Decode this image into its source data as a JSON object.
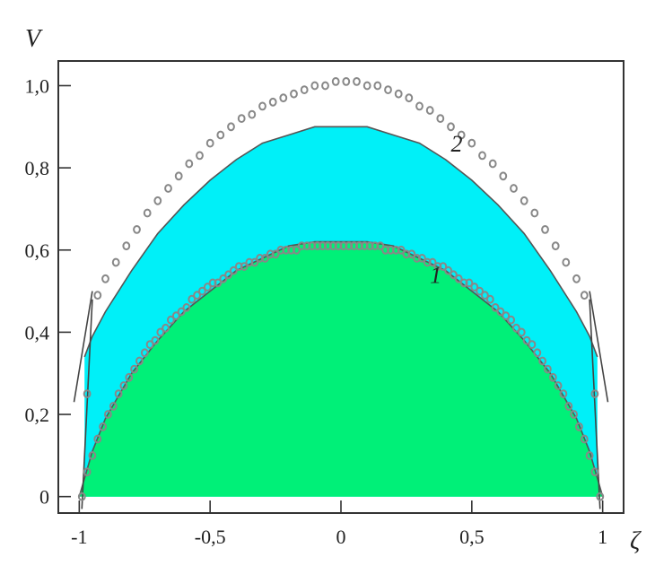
{
  "chart_data": {
    "type": "area",
    "title": "",
    "xlabel": "ζ",
    "ylabel": "V",
    "xlim": [
      -1.08,
      1.08
    ],
    "ylim": [
      -0.04,
      1.06
    ],
    "xticks": [
      -1,
      -0.5,
      0,
      0.5,
      1
    ],
    "xtick_labels": [
      "-1",
      "-0,5",
      "0",
      "0,5",
      "1"
    ],
    "yticks": [
      0,
      0.2,
      0.4,
      0.6,
      0.8,
      1.0
    ],
    "ytick_labels": [
      "0",
      "0,2",
      "0,4",
      "0,6",
      "0,8",
      "1,0"
    ],
    "grid": false,
    "bands": [
      {
        "color": "#00f0f8",
        "x": [
          -0.98,
          -0.95,
          -0.9,
          -0.8,
          -0.7,
          -0.6,
          -0.5,
          -0.4,
          -0.3,
          -0.2,
          -0.1,
          0,
          0.1,
          0.2,
          0.3,
          0.4,
          0.5,
          0.6,
          0.7,
          0.8,
          0.9,
          0.95,
          0.98
        ],
        "y": [
          0.34,
          0.39,
          0.45,
          0.55,
          0.64,
          0.71,
          0.77,
          0.82,
          0.86,
          0.88,
          0.9,
          0.9,
          0.9,
          0.88,
          0.86,
          0.82,
          0.77,
          0.71,
          0.64,
          0.55,
          0.45,
          0.39,
          0.34
        ]
      },
      {
        "color": "#00f078",
        "x": [
          -1,
          -0.95,
          -0.9,
          -0.8,
          -0.7,
          -0.6,
          -0.5,
          -0.4,
          -0.3,
          -0.2,
          -0.1,
          0,
          0.1,
          0.2,
          0.3,
          0.4,
          0.5,
          0.6,
          0.7,
          0.8,
          0.9,
          0.95,
          1
        ],
        "y": [
          0,
          0.11,
          0.19,
          0.3,
          0.38,
          0.45,
          0.5,
          0.55,
          0.58,
          0.61,
          0.62,
          0.62,
          0.62,
          0.61,
          0.58,
          0.55,
          0.5,
          0.45,
          0.38,
          0.3,
          0.19,
          0.11,
          0
        ]
      }
    ],
    "series": [
      {
        "label": "2",
        "marker": "circle",
        "points": [
          [
            -0.97,
            0.25
          ],
          [
            -0.93,
            0.49
          ],
          [
            -0.9,
            0.53
          ],
          [
            -0.86,
            0.57
          ],
          [
            -0.82,
            0.61
          ],
          [
            -0.78,
            0.65
          ],
          [
            -0.74,
            0.69
          ],
          [
            -0.7,
            0.72
          ],
          [
            -0.66,
            0.75
          ],
          [
            -0.62,
            0.78
          ],
          [
            -0.58,
            0.81
          ],
          [
            -0.54,
            0.83
          ],
          [
            -0.5,
            0.86
          ],
          [
            -0.46,
            0.88
          ],
          [
            -0.42,
            0.9
          ],
          [
            -0.38,
            0.92
          ],
          [
            -0.34,
            0.93
          ],
          [
            -0.3,
            0.95
          ],
          [
            -0.26,
            0.96
          ],
          [
            -0.22,
            0.97
          ],
          [
            -0.18,
            0.98
          ],
          [
            -0.14,
            0.99
          ],
          [
            -0.1,
            1.0
          ],
          [
            -0.06,
            1.0
          ],
          [
            -0.02,
            1.01
          ],
          [
            0.02,
            1.01
          ],
          [
            0.06,
            1.01
          ],
          [
            0.1,
            1.0
          ],
          [
            0.14,
            1.0
          ],
          [
            0.18,
            0.99
          ],
          [
            0.22,
            0.98
          ],
          [
            0.26,
            0.97
          ],
          [
            0.3,
            0.95
          ],
          [
            0.34,
            0.94
          ],
          [
            0.38,
            0.92
          ],
          [
            0.42,
            0.9
          ],
          [
            0.46,
            0.88
          ],
          [
            0.5,
            0.86
          ],
          [
            0.54,
            0.83
          ],
          [
            0.58,
            0.81
          ],
          [
            0.62,
            0.78
          ],
          [
            0.66,
            0.75
          ],
          [
            0.7,
            0.72
          ],
          [
            0.74,
            0.69
          ],
          [
            0.78,
            0.65
          ],
          [
            0.82,
            0.61
          ],
          [
            0.86,
            0.57
          ],
          [
            0.9,
            0.53
          ],
          [
            0.93,
            0.49
          ],
          [
            0.97,
            0.25
          ]
        ]
      },
      {
        "label": "1",
        "marker": "circle",
        "points": [
          [
            -0.99,
            0.0
          ],
          [
            -0.97,
            0.06
          ],
          [
            -0.95,
            0.1
          ],
          [
            -0.93,
            0.14
          ],
          [
            -0.91,
            0.17
          ],
          [
            -0.89,
            0.2
          ],
          [
            -0.87,
            0.22
          ],
          [
            -0.85,
            0.25
          ],
          [
            -0.83,
            0.27
          ],
          [
            -0.81,
            0.29
          ],
          [
            -0.79,
            0.31
          ],
          [
            -0.77,
            0.33
          ],
          [
            -0.75,
            0.35
          ],
          [
            -0.73,
            0.37
          ],
          [
            -0.71,
            0.38
          ],
          [
            -0.69,
            0.4
          ],
          [
            -0.67,
            0.41
          ],
          [
            -0.65,
            0.43
          ],
          [
            -0.63,
            0.44
          ],
          [
            -0.61,
            0.45
          ],
          [
            -0.59,
            0.46
          ],
          [
            -0.57,
            0.48
          ],
          [
            -0.55,
            0.49
          ],
          [
            -0.53,
            0.5
          ],
          [
            -0.51,
            0.51
          ],
          [
            -0.49,
            0.52
          ],
          [
            -0.47,
            0.52
          ],
          [
            -0.45,
            0.53
          ],
          [
            -0.43,
            0.54
          ],
          [
            -0.41,
            0.55
          ],
          [
            -0.39,
            0.56
          ],
          [
            -0.37,
            0.56
          ],
          [
            -0.35,
            0.57
          ],
          [
            -0.33,
            0.57
          ],
          [
            -0.31,
            0.58
          ],
          [
            -0.29,
            0.58
          ],
          [
            -0.27,
            0.59
          ],
          [
            -0.25,
            0.59
          ],
          [
            -0.23,
            0.6
          ],
          [
            -0.21,
            0.6
          ],
          [
            -0.19,
            0.6
          ],
          [
            -0.17,
            0.6
          ],
          [
            -0.15,
            0.61
          ],
          [
            -0.13,
            0.61
          ],
          [
            -0.11,
            0.61
          ],
          [
            -0.09,
            0.61
          ],
          [
            -0.07,
            0.61
          ],
          [
            -0.05,
            0.61
          ],
          [
            -0.03,
            0.61
          ],
          [
            -0.01,
            0.61
          ],
          [
            0.01,
            0.61
          ],
          [
            0.03,
            0.61
          ],
          [
            0.05,
            0.61
          ],
          [
            0.07,
            0.61
          ],
          [
            0.09,
            0.61
          ],
          [
            0.11,
            0.61
          ],
          [
            0.13,
            0.61
          ],
          [
            0.15,
            0.61
          ],
          [
            0.17,
            0.6
          ],
          [
            0.19,
            0.6
          ],
          [
            0.21,
            0.6
          ],
          [
            0.23,
            0.6
          ],
          [
            0.25,
            0.59
          ],
          [
            0.27,
            0.59
          ],
          [
            0.29,
            0.58
          ],
          [
            0.31,
            0.58
          ],
          [
            0.33,
            0.57
          ],
          [
            0.35,
            0.57
          ],
          [
            0.37,
            0.56
          ],
          [
            0.39,
            0.56
          ],
          [
            0.41,
            0.55
          ],
          [
            0.43,
            0.54
          ],
          [
            0.45,
            0.53
          ],
          [
            0.47,
            0.52
          ],
          [
            0.49,
            0.52
          ],
          [
            0.51,
            0.51
          ],
          [
            0.53,
            0.5
          ],
          [
            0.55,
            0.49
          ],
          [
            0.57,
            0.48
          ],
          [
            0.59,
            0.46
          ],
          [
            0.61,
            0.45
          ],
          [
            0.63,
            0.44
          ],
          [
            0.65,
            0.43
          ],
          [
            0.67,
            0.41
          ],
          [
            0.69,
            0.4
          ],
          [
            0.71,
            0.38
          ],
          [
            0.73,
            0.37
          ],
          [
            0.75,
            0.35
          ],
          [
            0.77,
            0.33
          ],
          [
            0.79,
            0.31
          ],
          [
            0.81,
            0.29
          ],
          [
            0.83,
            0.27
          ],
          [
            0.85,
            0.25
          ],
          [
            0.87,
            0.22
          ],
          [
            0.89,
            0.2
          ],
          [
            0.91,
            0.17
          ],
          [
            0.93,
            0.14
          ],
          [
            0.95,
            0.1
          ],
          [
            0.97,
            0.06
          ],
          [
            0.99,
            0.0
          ]
        ]
      }
    ],
    "edge_lines": [
      [
        [
          -1.02,
          0.23
        ],
        [
          -0.95,
          0.5
        ]
      ],
      [
        [
          -0.99,
          -0.03
        ],
        [
          -0.95,
          0.48
        ]
      ],
      [
        [
          1.02,
          0.23
        ],
        [
          0.95,
          0.5
        ]
      ],
      [
        [
          0.99,
          -0.03
        ],
        [
          0.95,
          0.48
        ]
      ]
    ],
    "curve_labels": [
      {
        "text": "2",
        "x": 0.42,
        "y": 0.84
      },
      {
        "text": "1",
        "x": 0.34,
        "y": 0.52
      }
    ],
    "colors": {
      "cyan_band": "#00f0f8",
      "green_band": "#00f078",
      "marker_stroke": "#888888",
      "frame": "#333333"
    }
  }
}
